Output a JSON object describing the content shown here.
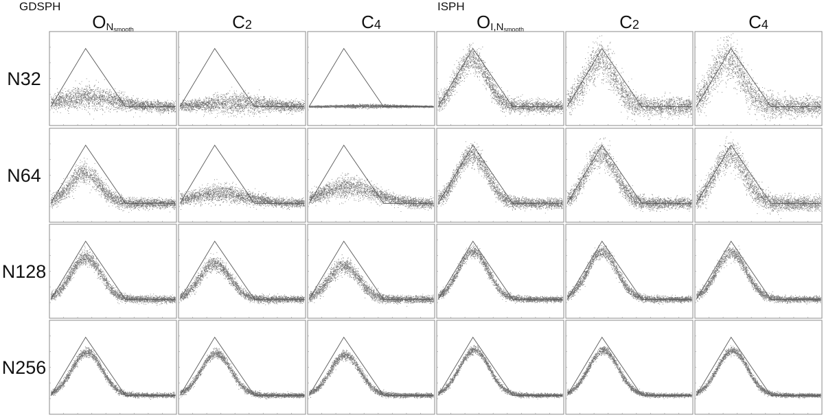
{
  "figure": {
    "groups": [
      {
        "label": "GDSPH"
      },
      {
        "label": "ISPH"
      }
    ],
    "columns": [
      {
        "main": "O",
        "sub": "N",
        "subsub": "smooth"
      },
      {
        "main": "C",
        "sub": "2",
        "subsub": ""
      },
      {
        "main": "C",
        "sub": "4",
        "subsub": ""
      },
      {
        "main": "O",
        "sub": "I,N",
        "subsub": "smooth"
      },
      {
        "main": "C",
        "sub": "2",
        "subsub": ""
      },
      {
        "main": "C",
        "sub": "4",
        "subsub": ""
      }
    ],
    "rows": [
      {
        "label": "N32"
      },
      {
        "label": "N64"
      },
      {
        "label": "N128"
      },
      {
        "label": "N256"
      }
    ]
  },
  "chart_data": {
    "type": "scatter",
    "description_free": true,
    "xlim": [
      0,
      1
    ],
    "ylim": [
      0,
      1
    ],
    "grid": false,
    "reference_profile": {
      "x": [
        0,
        0.28,
        0.6,
        1
      ],
      "y": [
        0,
        1,
        0,
        0
      ]
    },
    "point_color": "#000000",
    "reference_color": "#555555",
    "panels": [
      [
        {
          "col": 0,
          "peak": 0.17,
          "peak_x": 0.3,
          "spread": 0.1,
          "tail_dip": 0.03
        },
        {
          "col": 1,
          "peak": 0.06,
          "peak_x": 0.45,
          "spread": 0.09,
          "tail_dip": 0.0
        },
        {
          "col": 2,
          "peak": 0.01,
          "peak_x": 0.5,
          "spread": 0.015,
          "tail_dip": 0.0
        },
        {
          "col": 3,
          "peak": 0.82,
          "peak_x": 0.27,
          "spread": 0.11,
          "tail_dip": 0.0
        },
        {
          "col": 4,
          "peak": 0.8,
          "peak_x": 0.26,
          "spread": 0.16,
          "tail_dip": 0.0
        },
        {
          "col": 5,
          "peak": 0.82,
          "peak_x": 0.25,
          "spread": 0.18,
          "tail_dip": 0.0
        }
      ],
      [
        {
          "col": 0,
          "peak": 0.53,
          "peak_x": 0.27,
          "spread": 0.09,
          "tail_dip": 0.0
        },
        {
          "col": 1,
          "peak": 0.17,
          "peak_x": 0.32,
          "spread": 0.08,
          "tail_dip": 0.0
        },
        {
          "col": 2,
          "peak": 0.28,
          "peak_x": 0.32,
          "spread": 0.09,
          "tail_dip": 0.0
        },
        {
          "col": 3,
          "peak": 0.84,
          "peak_x": 0.27,
          "spread": 0.09,
          "tail_dip": 0.0
        },
        {
          "col": 4,
          "peak": 0.85,
          "peak_x": 0.27,
          "spread": 0.1,
          "tail_dip": 0.0
        },
        {
          "col": 5,
          "peak": 0.84,
          "peak_x": 0.27,
          "spread": 0.13,
          "tail_dip": 0.0
        }
      ],
      [
        {
          "col": 0,
          "peak": 0.72,
          "peak_x": 0.28,
          "spread": 0.06,
          "tail_dip": 0.0
        },
        {
          "col": 1,
          "peak": 0.62,
          "peak_x": 0.28,
          "spread": 0.06,
          "tail_dip": 0.0
        },
        {
          "col": 2,
          "peak": 0.58,
          "peak_x": 0.28,
          "spread": 0.07,
          "tail_dip": 0.0
        },
        {
          "col": 3,
          "peak": 0.82,
          "peak_x": 0.28,
          "spread": 0.05,
          "tail_dip": 0.0
        },
        {
          "col": 4,
          "peak": 0.81,
          "peak_x": 0.28,
          "spread": 0.055,
          "tail_dip": 0.0
        },
        {
          "col": 5,
          "peak": 0.8,
          "peak_x": 0.28,
          "spread": 0.055,
          "tail_dip": 0.0
        }
      ],
      [
        {
          "col": 0,
          "peak": 0.74,
          "peak_x": 0.29,
          "spread": 0.04,
          "tail_dip": 0.0
        },
        {
          "col": 1,
          "peak": 0.72,
          "peak_x": 0.29,
          "spread": 0.04,
          "tail_dip": 0.0
        },
        {
          "col": 2,
          "peak": 0.69,
          "peak_x": 0.29,
          "spread": 0.04,
          "tail_dip": 0.0
        },
        {
          "col": 3,
          "peak": 0.78,
          "peak_x": 0.29,
          "spread": 0.035,
          "tail_dip": 0.0
        },
        {
          "col": 4,
          "peak": 0.77,
          "peak_x": 0.29,
          "spread": 0.035,
          "tail_dip": 0.0
        },
        {
          "col": 5,
          "peak": 0.77,
          "peak_x": 0.29,
          "spread": 0.035,
          "tail_dip": 0.0
        }
      ]
    ]
  }
}
